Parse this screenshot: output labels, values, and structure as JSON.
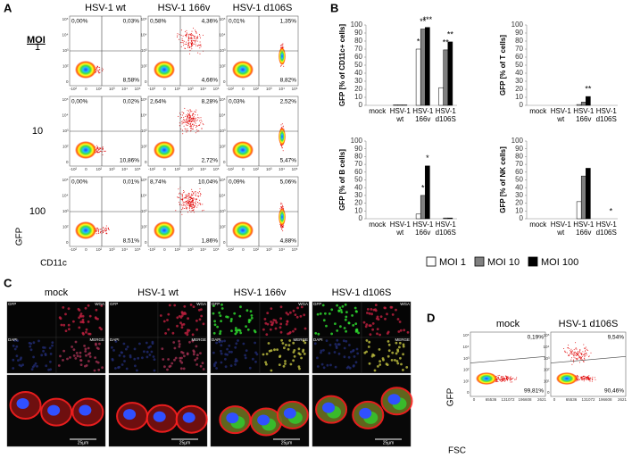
{
  "panel_a": {
    "label": "A",
    "columns": [
      "HSV-1 wt",
      "HSV-1 166v",
      "HSV-1 d106S"
    ],
    "moi_label": "MOI",
    "rows": [
      {
        "moi": "1",
        "quadrants": [
          [
            "0,00%",
            "0,03%",
            "8,58%"
          ],
          [
            "0,58%",
            "4,36%",
            "4,66%"
          ],
          [
            "0,01%",
            "1,35%",
            "8,82%"
          ]
        ]
      },
      {
        "moi": "10",
        "quadrants": [
          [
            "0,00%",
            "0,02%",
            "10,86%"
          ],
          [
            "2,64%",
            "8,28%",
            "2,72%"
          ],
          [
            "0,03%",
            "2,52%",
            "5,47%"
          ]
        ]
      },
      {
        "moi": "100",
        "quadrants": [
          [
            "0,00%",
            "0,01%",
            "8,51%"
          ],
          [
            "8,74%",
            "10,04%",
            "1,86%"
          ],
          [
            "0,09%",
            "5,06%",
            "4,88%"
          ]
        ]
      }
    ],
    "y_axis_label": "GFP",
    "x_axis_label": "CD11c",
    "y_ticks": [
      "10⁵",
      "10⁴",
      "10³",
      "10²",
      "0"
    ],
    "x_ticks": [
      "-10²",
      "0",
      "10²",
      "10³",
      "10⁴",
      "10⁵"
    ]
  },
  "panel_b": {
    "label": "B"
  },
  "chart_data": [
    {
      "type": "bar",
      "y_label": "GFP [% of CD11c+ cells]",
      "categories": [
        "mock",
        "HSV-1 wt",
        "HSV-1 166v",
        "HSV-1 d106S"
      ],
      "ylim": [
        0,
        100
      ],
      "yticks": [
        0,
        10,
        20,
        30,
        40,
        50,
        60,
        70,
        80,
        90,
        100
      ],
      "series": [
        {
          "name": "MOI 1",
          "color": "#ffffff",
          "values": [
            0,
            0.5,
            70,
            22
          ],
          "significance": [
            null,
            null,
            "*",
            null
          ]
        },
        {
          "name": "MOI 10",
          "color": "#808080",
          "values": [
            0,
            0.5,
            95,
            69
          ],
          "significance": [
            null,
            null,
            "**",
            "**"
          ]
        },
        {
          "name": "MOI 100",
          "color": "#000000",
          "values": [
            0,
            0.5,
            97,
            79
          ],
          "significance": [
            null,
            null,
            "***",
            "**"
          ]
        }
      ]
    },
    {
      "type": "bar",
      "y_label": "GFP [% of T cells]",
      "categories": [
        "mock",
        "HSV-1 wt",
        "HSV-1 166v",
        "HSV-1 d106S"
      ],
      "ylim": [
        0,
        100
      ],
      "yticks": [
        0,
        10,
        20,
        30,
        40,
        50,
        60,
        70,
        80,
        90,
        100
      ],
      "series": [
        {
          "name": "MOI 1",
          "color": "#ffffff",
          "values": [
            0,
            0,
            1,
            0
          ],
          "significance": [
            null,
            null,
            null,
            null
          ]
        },
        {
          "name": "MOI 10",
          "color": "#808080",
          "values": [
            0,
            0,
            4,
            0
          ],
          "significance": [
            null,
            null,
            null,
            null
          ]
        },
        {
          "name": "MOI 100",
          "color": "#000000",
          "values": [
            0,
            0,
            11,
            0
          ],
          "significance": [
            null,
            null,
            "**",
            null
          ]
        }
      ]
    },
    {
      "type": "bar",
      "y_label": "GFP [% of B cells]",
      "categories": [
        "mock",
        "HSV-1 wt",
        "HSV-1 166v",
        "HSV-1 d106S"
      ],
      "ylim": [
        0,
        100
      ],
      "yticks": [
        0,
        10,
        20,
        30,
        40,
        50,
        60,
        70,
        80,
        90,
        100
      ],
      "legend": "bottom",
      "series": [
        {
          "name": "MOI 1",
          "color": "#ffffff",
          "values": [
            0,
            0,
            6,
            0
          ],
          "significance": [
            null,
            null,
            null,
            null
          ]
        },
        {
          "name": "MOI 10",
          "color": "#808080",
          "values": [
            0,
            0,
            30,
            1
          ],
          "significance": [
            null,
            null,
            "*",
            null
          ]
        },
        {
          "name": "MOI 100",
          "color": "#000000",
          "values": [
            0,
            0,
            68,
            1
          ],
          "significance": [
            null,
            null,
            "*",
            null
          ]
        }
      ]
    },
    {
      "type": "bar",
      "y_label": "GFP [% of NK cells]",
      "categories": [
        "mock",
        "HSV-1 wt",
        "HSV-1 166v",
        "HSV-1 d106S"
      ],
      "ylim": [
        0,
        100
      ],
      "yticks": [
        0,
        10,
        20,
        30,
        40,
        50,
        60,
        70,
        80,
        90,
        100
      ],
      "series": [
        {
          "name": "MOI 1",
          "color": "#ffffff",
          "values": [
            0,
            0,
            22,
            0
          ],
          "significance": [
            null,
            null,
            null,
            null
          ]
        },
        {
          "name": "MOI 10",
          "color": "#808080",
          "values": [
            0,
            0,
            55,
            0
          ],
          "significance": [
            null,
            null,
            null,
            null
          ]
        },
        {
          "name": "MOI 100",
          "color": "#000000",
          "values": [
            0,
            0,
            65,
            0
          ],
          "significance": [
            null,
            null,
            null,
            "*"
          ]
        }
      ]
    }
  ],
  "panel_c": {
    "label": "C",
    "columns": [
      "mock",
      "HSV-1 wt",
      "HSV-1 166v",
      "HSV-1 d106S"
    ],
    "channels": [
      "GFP",
      "WGA",
      "DAPI",
      "MERGE"
    ],
    "scale_bar": "25µm"
  },
  "panel_d": {
    "label": "D",
    "columns": [
      "mock",
      "HSV-1 d106S"
    ],
    "quadrants": [
      [
        "0,19%",
        "99,81%"
      ],
      [
        "9,54%",
        "90,46%"
      ]
    ],
    "y_axis_label": "GFP",
    "x_axis_label": "FSC",
    "y_ticks": [
      "10⁵",
      "10⁴",
      "10³",
      "10²",
      "10¹",
      "0"
    ],
    "x_ticks": [
      "0",
      "65536",
      "131072",
      "196608",
      "2621"
    ]
  }
}
